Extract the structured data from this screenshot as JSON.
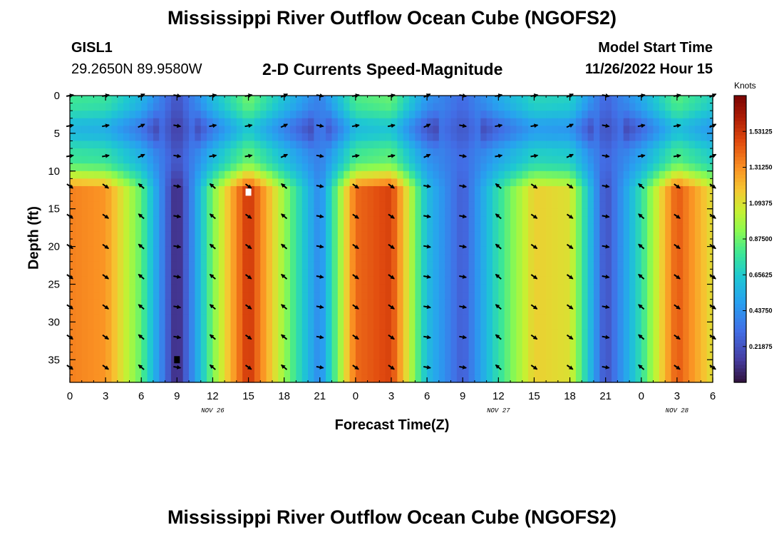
{
  "chart_data": {
    "type": "heatmap",
    "title": "Mississippi River Outflow Ocean Cube (NGOFS2)",
    "subtitle": "2-D Currents Speed-Magnitude",
    "station": "GISL1",
    "coords": "29.2650N  89.9580W",
    "model_start_label": "Model Start Time",
    "model_start_value": "11/26/2022 Hour 15",
    "xlabel": "Forecast Time(Z)",
    "ylabel": "Depth (ft)",
    "xlim": [
      0,
      54
    ],
    "ylim": [
      38,
      0
    ],
    "x_tick_values": [
      0,
      3,
      6,
      9,
      12,
      15,
      18,
      21,
      24,
      27,
      30,
      33,
      36,
      39,
      42,
      45,
      48,
      51,
      54
    ],
    "x_tick_labels": [
      "0",
      "3",
      "6",
      "9",
      "12",
      "15",
      "18",
      "21",
      "0",
      "3",
      "6",
      "9",
      "12",
      "15",
      "18",
      "21",
      "0",
      "3",
      "6"
    ],
    "y_tick_values": [
      0,
      5,
      10,
      15,
      20,
      25,
      30,
      35
    ],
    "y_tick_labels": [
      "0",
      "5",
      "10",
      "15",
      "20",
      "25",
      "30",
      "35"
    ],
    "date_labels": [
      {
        "x": 12,
        "text": "NOV 26"
      },
      {
        "x": 36,
        "text": "NOV 27"
      },
      {
        "x": 51,
        "text": "NOV 28"
      }
    ],
    "colorbar": {
      "label": "Knots",
      "min": 0.0,
      "max": 1.75,
      "ticks": [
        0.21875,
        0.4375,
        0.65625,
        0.875,
        1.09375,
        1.3125,
        1.53125
      ],
      "tick_labels": [
        "0.21875",
        "0.43750",
        "0.65625",
        "0.87500",
        "1.09375",
        "1.31250",
        "1.53125"
      ]
    },
    "peak_speed_by_hour": {
      "hours": [
        0,
        3,
        6,
        9,
        12,
        15,
        18,
        21,
        24,
        27,
        30,
        33,
        36,
        39,
        42,
        45,
        48,
        51,
        54
      ],
      "values": [
        1.35,
        1.3,
        0.85,
        0.05,
        0.9,
        1.55,
        0.95,
        0.4,
        1.4,
        1.5,
        0.6,
        0.25,
        0.75,
        1.15,
        1.1,
        0.2,
        0.75,
        1.45,
        1.1
      ]
    },
    "vector_depths_ft": [
      0,
      4,
      8,
      12,
      16,
      20,
      24,
      28,
      32,
      36
    ],
    "vector_hours": [
      0,
      3,
      6,
      9,
      12,
      15,
      18,
      21,
      24,
      27,
      30,
      33,
      36,
      39,
      42,
      45,
      48,
      51,
      54
    ],
    "markers": [
      {
        "x": 15,
        "y": 12.8,
        "color": "#ffffff"
      },
      {
        "x": 9,
        "y": 35.0,
        "color": "#000000"
      }
    ]
  },
  "bottom_title": "Mississippi River Outflow Ocean Cube (NGOFS2)"
}
